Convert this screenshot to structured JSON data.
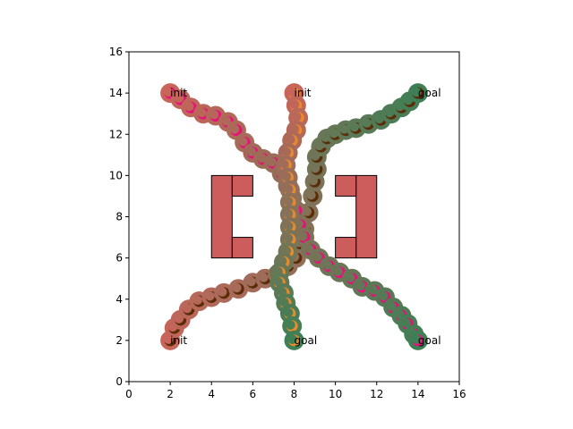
{
  "chart_data": {
    "type": "scatter",
    "xlim": [
      0,
      16
    ],
    "ylim": [
      0,
      16
    ],
    "x_ticks": [
      0,
      2,
      4,
      6,
      8,
      10,
      12,
      14,
      16
    ],
    "y_ticks": [
      0,
      2,
      4,
      6,
      8,
      10,
      12,
      14,
      16
    ],
    "grid": false,
    "legend": "none",
    "obstacles": [
      [
        4.0,
        6.0,
        1.0,
        4.0
      ],
      [
        5.0,
        9.0,
        1.0,
        1.0
      ],
      [
        5.0,
        6.0,
        1.0,
        1.0
      ],
      [
        11.0,
        6.0,
        1.0,
        4.0
      ],
      [
        10.0,
        9.0,
        1.0,
        1.0
      ],
      [
        10.0,
        6.0,
        1.0,
        1.0
      ]
    ],
    "obstacle_color": "#cd5c5c",
    "trajectories": [
      {
        "outer_start": "#c8645a",
        "outer_end": "#3f7f55",
        "inner": "#5a2d08",
        "points": [
          [
            2.0,
            2.0
          ],
          [
            2.2,
            2.6
          ],
          [
            2.5,
            3.0
          ],
          [
            2.9,
            3.5
          ],
          [
            3.4,
            3.9
          ],
          [
            4.0,
            4.1
          ],
          [
            4.6,
            4.3
          ],
          [
            5.3,
            4.5
          ],
          [
            6.0,
            4.8
          ],
          [
            6.6,
            5.0
          ],
          [
            7.2,
            5.2
          ],
          [
            7.7,
            5.6
          ],
          [
            8.1,
            6.0
          ],
          [
            8.3,
            6.7
          ],
          [
            8.5,
            7.4
          ],
          [
            8.7,
            8.2
          ],
          [
            8.9,
            9.0
          ],
          [
            9.0,
            9.7
          ],
          [
            9.1,
            10.3
          ],
          [
            9.1,
            10.9
          ],
          [
            9.3,
            11.4
          ],
          [
            9.6,
            11.8
          ],
          [
            10.0,
            12.0
          ],
          [
            10.5,
            12.2
          ],
          [
            11.0,
            12.3
          ],
          [
            11.6,
            12.5
          ],
          [
            12.2,
            12.7
          ],
          [
            12.7,
            13.0
          ],
          [
            13.2,
            13.3
          ],
          [
            13.6,
            13.6
          ],
          [
            14.0,
            14.0
          ]
        ]
      },
      {
        "outer_start": "#c8645a",
        "outer_end": "#3f7f55",
        "inner": "#e8107a",
        "points": [
          [
            2.0,
            14.0
          ],
          [
            2.5,
            13.7
          ],
          [
            3.0,
            13.3
          ],
          [
            3.6,
            13.0
          ],
          [
            4.2,
            12.9
          ],
          [
            4.8,
            12.6
          ],
          [
            5.2,
            12.2
          ],
          [
            5.6,
            11.6
          ],
          [
            6.0,
            11.1
          ],
          [
            6.5,
            10.8
          ],
          [
            7.0,
            10.6
          ],
          [
            7.4,
            10.1
          ],
          [
            7.7,
            9.5
          ],
          [
            7.9,
            8.9
          ],
          [
            8.1,
            8.3
          ],
          [
            8.3,
            7.6
          ],
          [
            8.5,
            7.0
          ],
          [
            8.8,
            6.4
          ],
          [
            9.2,
            6.0
          ],
          [
            9.7,
            5.6
          ],
          [
            10.2,
            5.3
          ],
          [
            10.8,
            5.0
          ],
          [
            11.3,
            4.6
          ],
          [
            11.9,
            4.4
          ],
          [
            12.4,
            4.1
          ],
          [
            12.8,
            3.6
          ],
          [
            13.2,
            3.2
          ],
          [
            13.5,
            2.8
          ],
          [
            13.8,
            2.3
          ],
          [
            14.0,
            2.0
          ]
        ]
      },
      {
        "outer_start": "#c8645a",
        "outer_end": "#3f7f55",
        "inner": "#e88a2a",
        "points": [
          [
            8.0,
            14.0
          ],
          [
            8.1,
            13.4
          ],
          [
            8.2,
            12.8
          ],
          [
            8.1,
            12.2
          ],
          [
            7.9,
            11.7
          ],
          [
            7.7,
            11.1
          ],
          [
            7.6,
            10.5
          ],
          [
            7.7,
            9.9
          ],
          [
            7.8,
            9.3
          ],
          [
            7.8,
            8.7
          ],
          [
            7.8,
            8.1
          ],
          [
            7.8,
            7.5
          ],
          [
            7.8,
            6.9
          ],
          [
            7.7,
            6.3
          ],
          [
            7.5,
            5.8
          ],
          [
            7.3,
            5.3
          ],
          [
            7.3,
            4.8
          ],
          [
            7.5,
            4.3
          ],
          [
            7.6,
            3.8
          ],
          [
            7.8,
            3.3
          ],
          [
            7.9,
            2.7
          ],
          [
            8.0,
            2.0
          ]
        ]
      }
    ],
    "annotations": [
      {
        "text": "init",
        "x": 2,
        "y": 14
      },
      {
        "text": "init",
        "x": 8,
        "y": 14
      },
      {
        "text": "goal",
        "x": 14,
        "y": 14
      },
      {
        "text": "init",
        "x": 2,
        "y": 2
      },
      {
        "text": "goal",
        "x": 8,
        "y": 2
      },
      {
        "text": "goal",
        "x": 14,
        "y": 2
      }
    ]
  }
}
